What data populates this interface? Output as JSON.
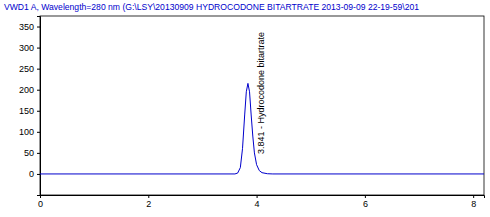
{
  "chart_data": {
    "type": "line",
    "title": "VWD1 A, Wavelength=280 nm (G:\\LSY\\20130909 HYDROCODONE BITARTRATE 2013-09-09 22-19-59\\201",
    "x": [
      0,
      3.6,
      3.65,
      3.7,
      3.74,
      3.78,
      3.81,
      3.84,
      3.87,
      3.9,
      3.93,
      3.96,
      4.0,
      4.05,
      4.1,
      4.2,
      4.3,
      8.2
    ],
    "values": [
      0,
      0,
      2,
      15,
      60,
      140,
      195,
      215,
      195,
      140,
      90,
      50,
      22,
      8,
      3,
      0.5,
      0,
      0
    ],
    "color": "#0000cc",
    "xlim": [
      0,
      8.2
    ],
    "xticks": [
      0,
      2,
      4,
      6,
      8
    ],
    "ylim": [
      -50,
      375
    ],
    "yticks": [
      0,
      50,
      100,
      150,
      200,
      250,
      300,
      350
    ],
    "grid": false,
    "annotations": [
      {
        "text": "3.841 - Hydrocodone bitartrate",
        "x": 3.841
      }
    ]
  }
}
